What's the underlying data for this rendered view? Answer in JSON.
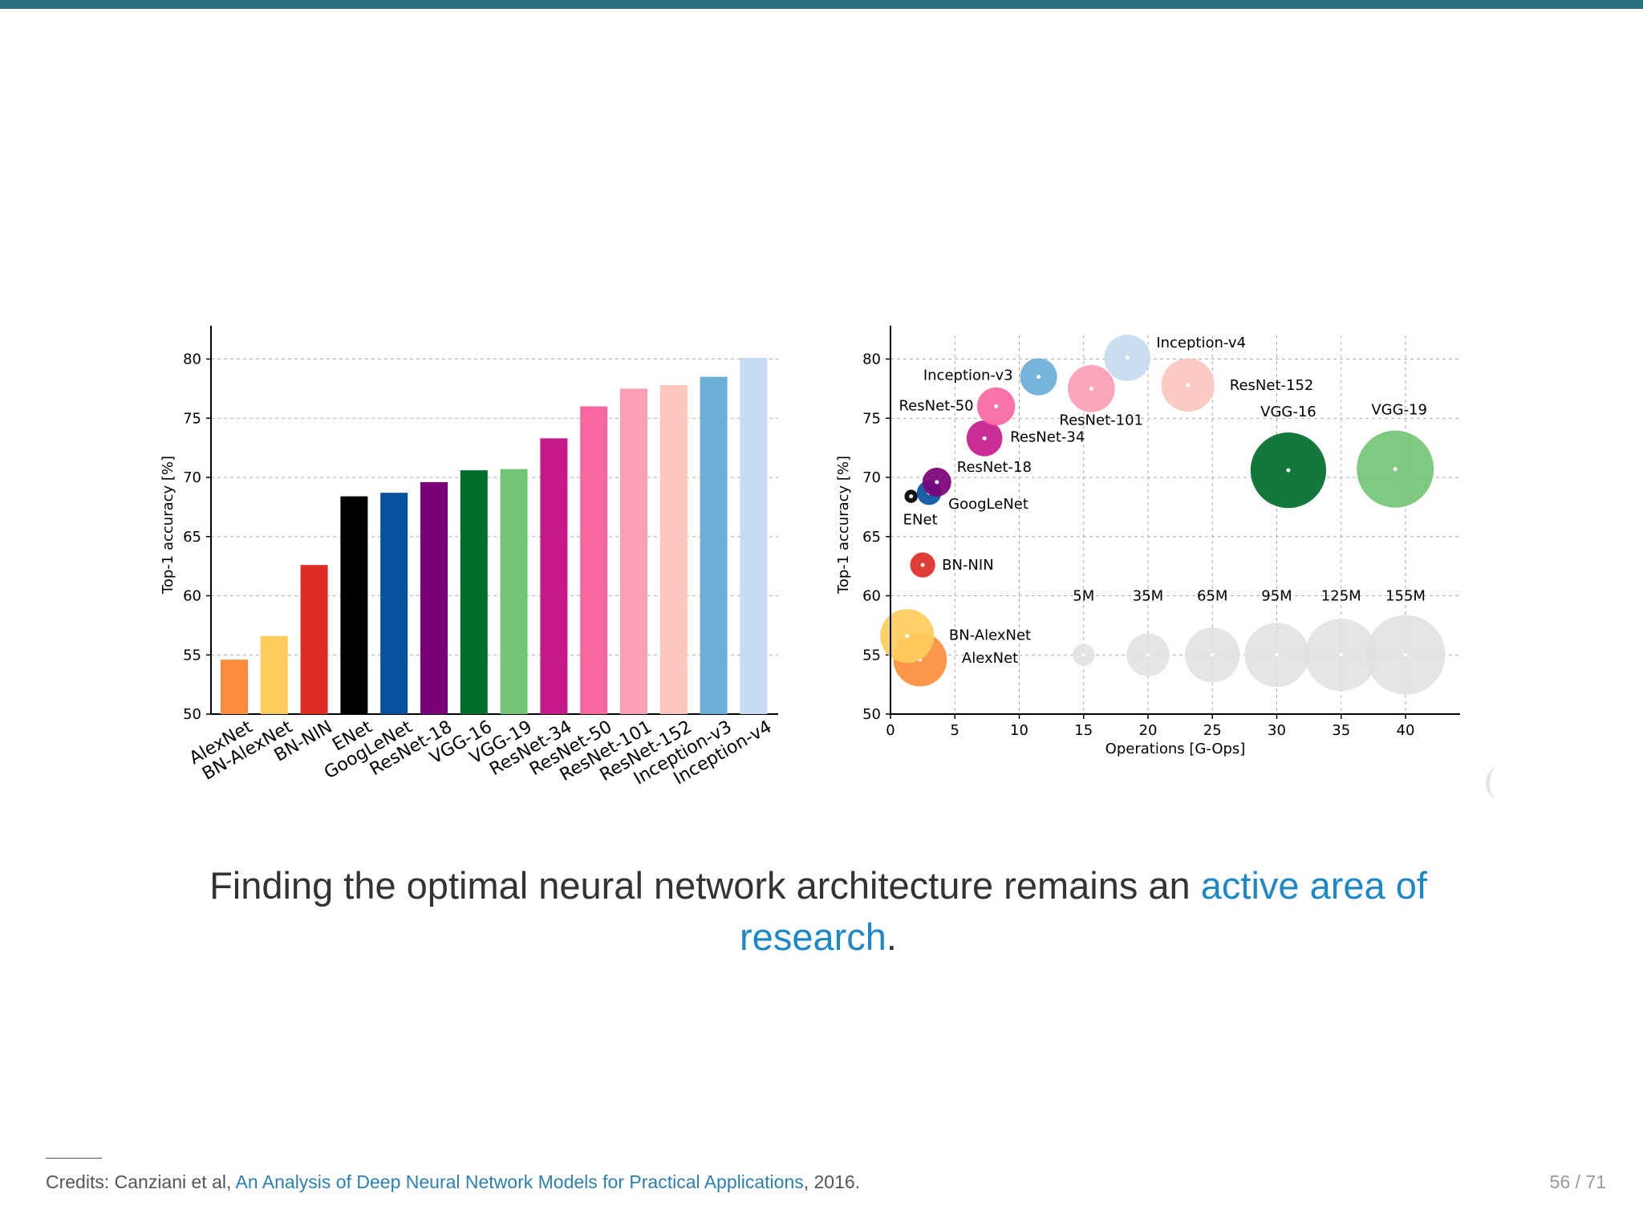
{
  "slide": {
    "caption_text": "Finding the optimal neural network architecture remains an ",
    "caption_link": "active area of research",
    "caption_end": ".",
    "credits_prefix": "Credits: Canziani et al, ",
    "credits_link": "An Analysis of Deep Neural Network Models for Practical Applications",
    "credits_suffix": ", 2016.",
    "page_number": "56 / 71",
    "colors": {
      "top_bar": "#2a6f7e",
      "link": "#1e88c7"
    }
  },
  "chart_data": [
    {
      "type": "bar",
      "ylabel": "Top-1 accuracy [%]",
      "ylim": [
        50,
        82
      ],
      "yticks": [
        50,
        55,
        60,
        65,
        70,
        75,
        80
      ],
      "grid": true,
      "categories": [
        "AlexNet",
        "BN-AlexNet",
        "BN-NIN",
        "ENet",
        "GoogLeNet",
        "ResNet-18",
        "VGG-16",
        "VGG-19",
        "ResNet-34",
        "ResNet-50",
        "ResNet-101",
        "ResNet-152",
        "Inception-v3",
        "Inception-v4"
      ],
      "values": [
        54.6,
        56.6,
        62.6,
        68.4,
        68.7,
        69.6,
        70.6,
        70.7,
        73.3,
        76.0,
        77.5,
        77.8,
        78.5,
        80.1
      ],
      "colors": [
        "#fd8d3c",
        "#fecc5c",
        "#de2d26",
        "#000000",
        "#08519c",
        "#7a0177",
        "#006d2c",
        "#74c476",
        "#c51b8a",
        "#f768a1",
        "#fa9fb5",
        "#fcc5c0",
        "#6baed6",
        "#c6dbef"
      ]
    },
    {
      "type": "scatter",
      "xlabel": "Operations [G-Ops]",
      "ylabel": "Top-1 accuracy [%]",
      "xlim": [
        0,
        44
      ],
      "ylim": [
        50,
        82
      ],
      "xticks": [
        0,
        5,
        10,
        15,
        20,
        25,
        30,
        35,
        40
      ],
      "yticks": [
        50,
        55,
        60,
        65,
        70,
        75,
        80
      ],
      "grid": true,
      "points": [
        {
          "name": "AlexNet",
          "x": 2.3,
          "y": 54.6,
          "params_m": 61,
          "color": "#fd8d3c"
        },
        {
          "name": "BN-AlexNet",
          "x": 1.3,
          "y": 56.6,
          "params_m": 62,
          "color": "#fecc5c"
        },
        {
          "name": "BN-NIN",
          "x": 2.5,
          "y": 62.6,
          "params_m": 7.6,
          "color": "#de2d26"
        },
        {
          "name": "ENet",
          "x": 1.6,
          "y": 68.4,
          "params_m": 0.4,
          "color": "#000000"
        },
        {
          "name": "GoogLeNet",
          "x": 3.0,
          "y": 68.7,
          "params_m": 7,
          "color": "#08519c"
        },
        {
          "name": "ResNet-18",
          "x": 3.6,
          "y": 69.6,
          "params_m": 11.7,
          "color": "#7a0177"
        },
        {
          "name": "VGG-16",
          "x": 30.9,
          "y": 70.6,
          "params_m": 138,
          "color": "#006d2c"
        },
        {
          "name": "VGG-19",
          "x": 39.2,
          "y": 70.7,
          "params_m": 144,
          "color": "#74c476"
        },
        {
          "name": "ResNet-34",
          "x": 7.3,
          "y": 73.3,
          "params_m": 21.8,
          "color": "#c51b8a"
        },
        {
          "name": "ResNet-50",
          "x": 8.2,
          "y": 76.0,
          "params_m": 25.6,
          "color": "#f768a1"
        },
        {
          "name": "ResNet-101",
          "x": 15.6,
          "y": 77.5,
          "params_m": 44.5,
          "color": "#fa9fb5"
        },
        {
          "name": "ResNet-152",
          "x": 23.1,
          "y": 77.8,
          "params_m": 60.2,
          "color": "#fcc5c0"
        },
        {
          "name": "Inception-v3",
          "x": 11.5,
          "y": 78.5,
          "params_m": 23.8,
          "color": "#6baed6"
        },
        {
          "name": "Inception-v4",
          "x": 18.4,
          "y": 80.1,
          "params_m": 42.7,
          "color": "#c6dbef"
        }
      ],
      "size_legend": [
        {
          "label": "5M",
          "x": 15,
          "params_m": 5
        },
        {
          "label": "35M",
          "x": 20,
          "params_m": 35
        },
        {
          "label": "65M",
          "x": 25,
          "params_m": 65
        },
        {
          "label": "95M",
          "x": 30,
          "params_m": 95
        },
        {
          "label": "125M",
          "x": 35,
          "params_m": 125
        },
        {
          "label": "155M",
          "x": 40,
          "params_m": 155
        }
      ],
      "size_legend_y": 55
    }
  ]
}
